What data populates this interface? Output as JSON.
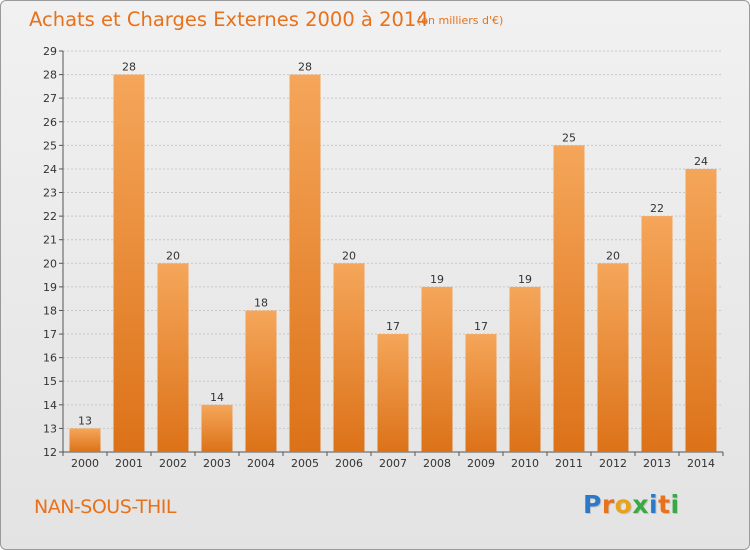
{
  "header": {
    "title": "Achats et Charges Externes 2000 à 2014",
    "unit": "(en milliers d'€)"
  },
  "footer": {
    "commune": "NAN-SOUS-THIL",
    "logo_letters": [
      "P",
      "r",
      "o",
      "x",
      "i",
      "t",
      "i"
    ],
    "logo_colors": [
      "#2b79c9",
      "#e8711b",
      "#e8a21b",
      "#3aa843",
      "#2b79c9",
      "#e8711b",
      "#3aa843"
    ]
  },
  "colors": {
    "bar_light": "#f5a65a",
    "bar_dark": "#dc7218",
    "axis_text": "#333333",
    "grid": "#c8c8c8",
    "accent": "#e8711b"
  },
  "chart_data": {
    "type": "bar",
    "categories": [
      "2000",
      "2001",
      "2002",
      "2003",
      "2004",
      "2005",
      "2006",
      "2007",
      "2008",
      "2009",
      "2010",
      "2011",
      "2012",
      "2013",
      "2014"
    ],
    "values": [
      13,
      28,
      20,
      14,
      18,
      28,
      20,
      17,
      19,
      17,
      19,
      25,
      20,
      22,
      24
    ],
    "title": "Achats et Charges Externes 2000 à 2014",
    "subtitle": "(en milliers d'€)",
    "ylim": [
      12,
      29
    ],
    "yticks": [
      12,
      13,
      14,
      15,
      16,
      17,
      18,
      19,
      20,
      21,
      22,
      23,
      24,
      25,
      26,
      27,
      28,
      29
    ],
    "grid": true,
    "legend": "none"
  }
}
